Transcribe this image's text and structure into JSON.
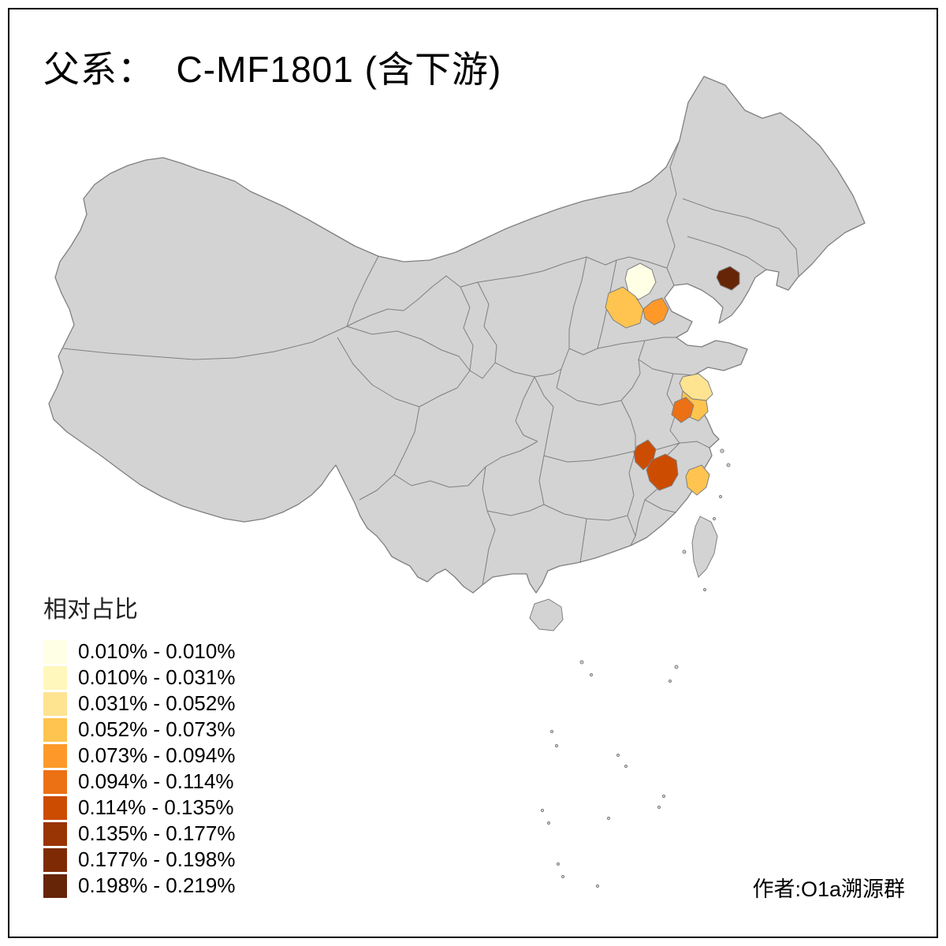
{
  "title": "父系：  C-MF1801 (含下游)",
  "author": "作者:O1a溯源群",
  "legend": {
    "title": "相对占比",
    "classes": [
      {
        "label": "0.010% - 0.010%",
        "color": "#FFFFE5"
      },
      {
        "label": "0.010% - 0.031%",
        "color": "#FFF7BC"
      },
      {
        "label": "0.031% - 0.052%",
        "color": "#FEE391"
      },
      {
        "label": "0.052% - 0.073%",
        "color": "#FEC44F"
      },
      {
        "label": "0.073% - 0.094%",
        "color": "#FE9929"
      },
      {
        "label": "0.094% - 0.114%",
        "color": "#EC7014"
      },
      {
        "label": "0.114% - 0.135%",
        "color": "#CC4C02"
      },
      {
        "label": "0.135% - 0.177%",
        "color": "#993404"
      },
      {
        "label": "0.177% - 0.198%",
        "color": "#7E2B05"
      },
      {
        "label": "0.198% - 0.219%",
        "color": "#662506"
      }
    ]
  },
  "map": {
    "base_fill": "#D3D3D3",
    "border_color": "#7F7F7F",
    "background": "#FFFFFF",
    "highlighted_regions": [
      {
        "name": "beijing",
        "class": 0
      },
      {
        "name": "hebei-central",
        "class": 3
      },
      {
        "name": "tianjin",
        "class": 4
      },
      {
        "name": "liaoning-east",
        "class": 9
      },
      {
        "name": "jiangsu-north",
        "class": 2
      },
      {
        "name": "jiangsu-mid",
        "class": 3
      },
      {
        "name": "nanjing-area",
        "class": 5
      },
      {
        "name": "zhejiang-coast",
        "class": 3
      },
      {
        "name": "zhejiang-west",
        "class": 6
      },
      {
        "name": "jiangxi-northeast",
        "class": 6
      }
    ]
  }
}
